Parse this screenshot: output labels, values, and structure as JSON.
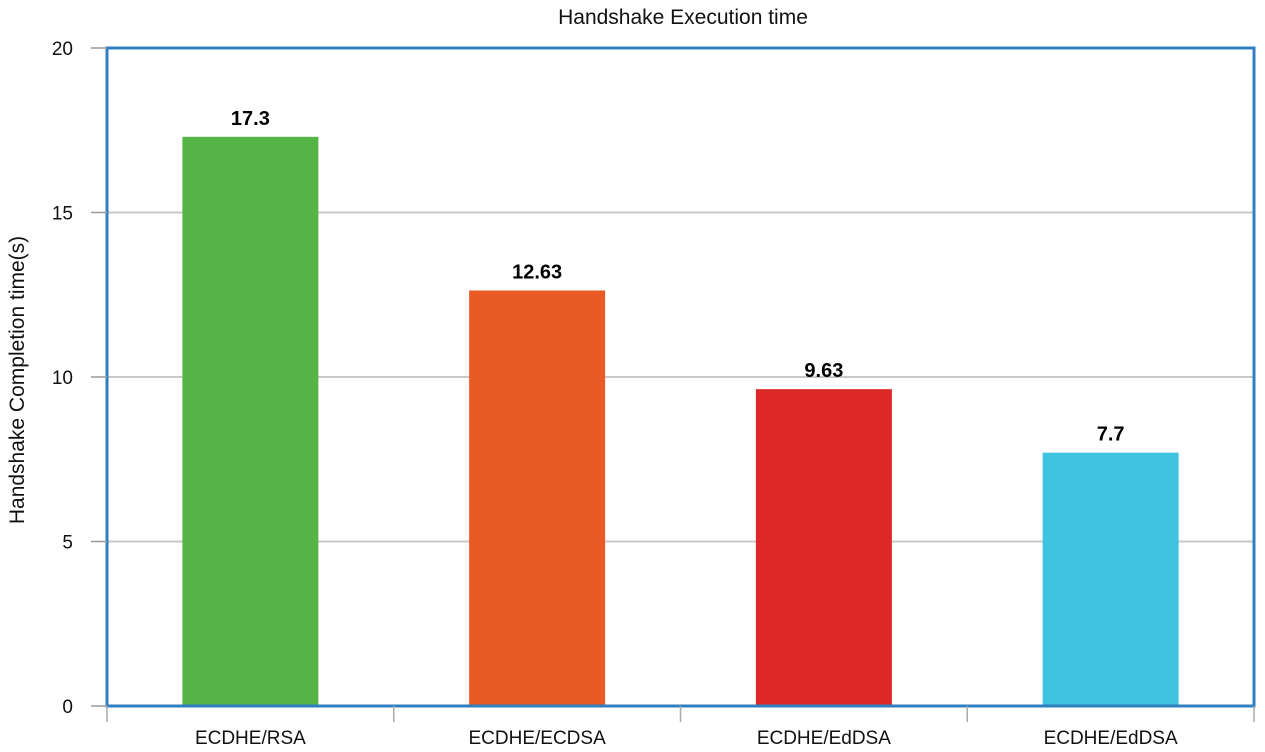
{
  "chart_data": {
    "type": "bar",
    "title": "Handshake Execution time",
    "xlabel": "",
    "ylabel": "Handshake Completion time(s)",
    "categories": [
      "ECDHE/RSA",
      "ECDHE/ECDSA",
      "ECDHE/EdDSA",
      "ECDHE/EdDSA"
    ],
    "values": [
      17.3,
      12.63,
      9.63,
      7.7
    ],
    "data_labels": [
      "17.3",
      "12.63",
      "9.63",
      "7.7"
    ],
    "bar_colors": [
      "#56b447",
      "#e95a27",
      "#dd2828",
      "#3ec3e0"
    ],
    "ylim": [
      0,
      20
    ],
    "yticks": [
      0,
      5,
      10,
      15,
      20
    ],
    "ytick_labels": [
      "0",
      "5",
      "10",
      "15",
      "20"
    ],
    "grid": "horizontal",
    "frame_color": "#2f7fc1",
    "grid_color": "#c8c8c8"
  }
}
